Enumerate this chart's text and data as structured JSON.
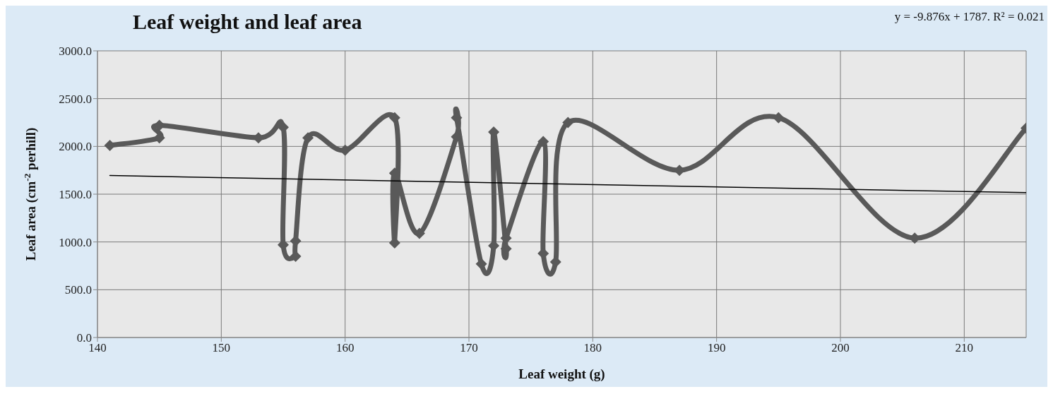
{
  "chart_data": {
    "type": "line",
    "title": "Leaf weight and leaf area",
    "xlabel": "Leaf weight (g)",
    "ylabel": "Leaf area (cm$^{-2}$ perhill)",
    "annotations": [
      "y = -9.876x + 1787. R² = 0.021"
    ],
    "series": [
      {
        "color": "#595959",
        "marker": "diamond",
        "x": [
          141,
          145,
          145,
          153,
          155,
          155,
          156,
          156,
          157,
          160,
          164,
          164,
          164,
          166,
          169,
          169,
          171,
          172,
          172,
          173,
          173,
          176,
          176,
          177,
          178,
          187,
          195,
          206,
          215
        ],
        "values": [
          2010,
          2090,
          2220,
          2090,
          2200,
          970,
          850,
          1010,
          2090,
          1960,
          2300,
          990,
          1720,
          1090,
          2100,
          2300,
          770,
          960,
          2150,
          930,
          1040,
          2050,
          880,
          790,
          2250,
          1750,
          2300,
          1040,
          2190
        ]
      },
      {
        "color": "#000000",
        "marker": "none",
        "x": [
          141,
          215
        ],
        "values": [
          1695,
          1516
        ]
      }
    ],
    "xlim": [
      140,
      215
    ],
    "xticks": [
      140,
      150,
      160,
      170,
      180,
      190,
      200,
      210
    ],
    "ylim": [
      0,
      3000
    ],
    "yticks": [
      {
        "value": 0,
        "label": "0.0"
      },
      {
        "value": 500,
        "label": "500.0"
      },
      {
        "value": 1000,
        "label": "1000.0"
      },
      {
        "value": 1500,
        "label": "1500.0"
      },
      {
        "value": 2000,
        "label": "2000.0"
      },
      {
        "value": 2500,
        "label": "2500.0"
      },
      {
        "value": 3000,
        "label": "3000.0"
      }
    ],
    "grid": true
  }
}
